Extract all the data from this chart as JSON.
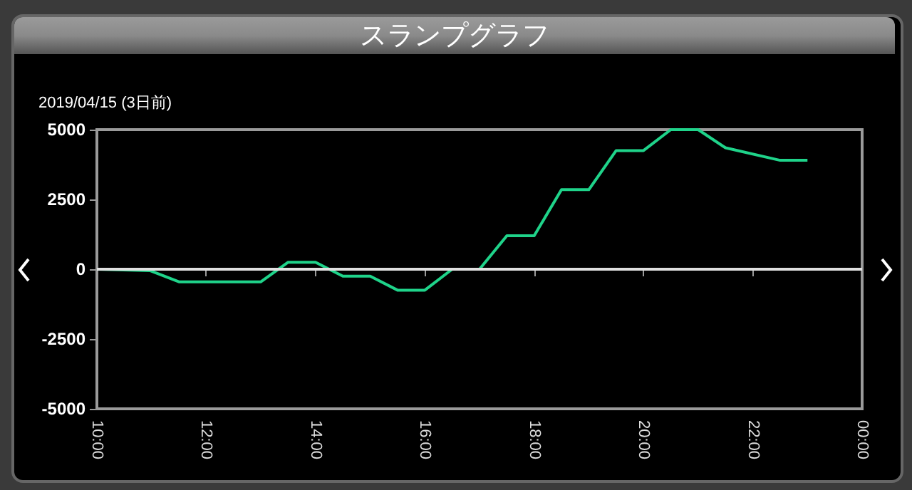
{
  "chart_data": {
    "type": "line",
    "title": "スランプグラフ",
    "subtitle": "2019/04/15 (3日前)",
    "x": [
      10,
      10.97,
      11.5,
      13,
      13.5,
      14,
      14.5,
      15,
      15.5,
      16,
      16.5,
      17,
      17.5,
      18,
      18.5,
      19,
      19.5,
      20,
      20.5,
      21,
      21.5,
      22.5,
      23
    ],
    "series": [
      {
        "color": "#1fd38a",
        "values": [
          0,
          -50,
          -450,
          -450,
          250,
          250,
          -250,
          -250,
          -750,
          -750,
          0,
          0,
          1200,
          1200,
          2850,
          2850,
          4250,
          4250,
          5000,
          5000,
          4350,
          3900,
          3900
        ]
      }
    ],
    "xlim": [
      10,
      24
    ],
    "xticks": [
      {
        "value": 10,
        "label": "10:00"
      },
      {
        "value": 12,
        "label": "12:00"
      },
      {
        "value": 14,
        "label": "14:00"
      },
      {
        "value": 16,
        "label": "16:00"
      },
      {
        "value": 18,
        "label": "18:00"
      },
      {
        "value": 20,
        "label": "20:00"
      },
      {
        "value": 22,
        "label": "22:00"
      },
      {
        "value": 24,
        "label": "00:00"
      }
    ],
    "ylim": [
      -5000,
      5000
    ],
    "yticks": [
      5000,
      2500,
      0,
      -2500,
      -5000
    ],
    "ref_lines": [
      {
        "axis": "y",
        "value": 0,
        "color": "#e0e0e0"
      }
    ],
    "grid": false,
    "marker": "none",
    "line_style": "solid"
  }
}
